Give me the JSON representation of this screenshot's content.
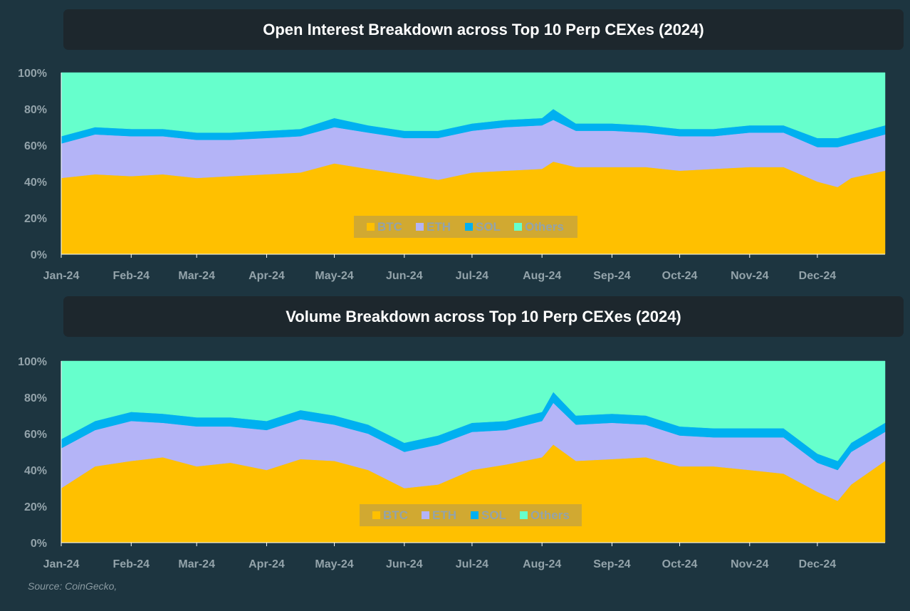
{
  "colors": {
    "BTC": "#ffc000",
    "ETH": "#b4b4f7",
    "SOL": "#00b0f0",
    "Others": "#66ffcc"
  },
  "source": "Source: CoinGecko,",
  "chart_data": [
    {
      "type": "area",
      "stacked": true,
      "title": "Open Interest Breakdown across Top 10 Perp CEXes (2024)",
      "y_ticks": [
        "0%",
        "20%",
        "40%",
        "60%",
        "80%",
        "100%"
      ],
      "ylim": [
        0,
        100
      ],
      "x_ticks": [
        "Jan-24",
        "Feb-24",
        "Mar-24",
        "Apr-24",
        "May-24",
        "Jun-24",
        "Jul-24",
        "Aug-24",
        "Sep-24",
        "Oct-24",
        "Nov-24",
        "Dec-24"
      ],
      "x": [
        "Jan-01",
        "Jan-16",
        "Feb-01",
        "Feb-15",
        "Mar-01",
        "Mar-16",
        "Apr-01",
        "Apr-16",
        "May-01",
        "May-16",
        "Jun-01",
        "Jun-16",
        "Jul-01",
        "Jul-16",
        "Aug-01",
        "Aug-06",
        "Aug-16",
        "Sep-01",
        "Sep-16",
        "Oct-01",
        "Oct-16",
        "Nov-01",
        "Nov-16",
        "Dec-01",
        "Dec-10",
        "Dec-16",
        "Dec-31"
      ],
      "series": [
        {
          "name": "BTC",
          "values": [
            42,
            44,
            43,
            44,
            42,
            43,
            44,
            45,
            50,
            47,
            44,
            41,
            45,
            46,
            47,
            51,
            48,
            48,
            48,
            46,
            47,
            48,
            48,
            40,
            37,
            42,
            46
          ]
        },
        {
          "name": "ETH",
          "values": [
            19,
            22,
            22,
            21,
            21,
            20,
            20,
            20,
            20,
            20,
            20,
            23,
            23,
            24,
            24,
            23,
            20,
            20,
            19,
            19,
            18,
            19,
            19,
            19,
            22,
            19,
            20
          ]
        },
        {
          "name": "SOL",
          "values": [
            4,
            4,
            4,
            4,
            4,
            4,
            4,
            4,
            5,
            4,
            4,
            4,
            4,
            4,
            4,
            6,
            4,
            4,
            4,
            4,
            4,
            4,
            4,
            5,
            5,
            5,
            5
          ]
        },
        {
          "name": "Others",
          "values": [
            35,
            30,
            31,
            31,
            33,
            33,
            32,
            31,
            25,
            29,
            32,
            32,
            28,
            26,
            25,
            20,
            28,
            28,
            29,
            31,
            31,
            29,
            29,
            36,
            36,
            34,
            29
          ]
        }
      ],
      "legend": "bottom-center"
    },
    {
      "type": "area",
      "stacked": true,
      "title": "Volume Breakdown across Top 10 Perp CEXes (2024)",
      "y_ticks": [
        "0%",
        "20%",
        "40%",
        "60%",
        "80%",
        "100%"
      ],
      "ylim": [
        0,
        100
      ],
      "x_ticks": [
        "Jan-24",
        "Feb-24",
        "Mar-24",
        "Apr-24",
        "May-24",
        "Jun-24",
        "Jul-24",
        "Aug-24",
        "Sep-24",
        "Oct-24",
        "Nov-24",
        "Dec-24"
      ],
      "x": [
        "Jan-01",
        "Jan-16",
        "Feb-01",
        "Feb-15",
        "Mar-01",
        "Mar-16",
        "Apr-01",
        "Apr-16",
        "May-01",
        "May-16",
        "Jun-01",
        "Jun-16",
        "Jul-01",
        "Jul-16",
        "Aug-01",
        "Aug-06",
        "Aug-16",
        "Sep-01",
        "Sep-16",
        "Oct-01",
        "Oct-16",
        "Nov-01",
        "Nov-16",
        "Dec-01",
        "Dec-10",
        "Dec-16",
        "Dec-31"
      ],
      "series": [
        {
          "name": "BTC",
          "values": [
            30,
            42,
            45,
            47,
            42,
            44,
            40,
            46,
            45,
            40,
            30,
            32,
            40,
            43,
            47,
            54,
            45,
            46,
            47,
            42,
            42,
            40,
            38,
            28,
            23,
            32,
            45
          ]
        },
        {
          "name": "ETH",
          "values": [
            22,
            20,
            22,
            19,
            22,
            20,
            22,
            22,
            20,
            20,
            20,
            22,
            21,
            19,
            20,
            23,
            20,
            20,
            18,
            17,
            16,
            18,
            20,
            16,
            17,
            18,
            16
          ]
        },
        {
          "name": "SOL",
          "values": [
            5,
            5,
            5,
            5,
            5,
            5,
            5,
            5,
            5,
            5,
            5,
            5,
            5,
            5,
            5,
            6,
            5,
            5,
            5,
            5,
            5,
            5,
            5,
            5,
            5,
            5,
            5
          ]
        },
        {
          "name": "Others",
          "values": [
            43,
            33,
            28,
            29,
            31,
            31,
            33,
            27,
            30,
            35,
            45,
            41,
            34,
            33,
            28,
            17,
            30,
            29,
            30,
            36,
            37,
            37,
            37,
            51,
            55,
            45,
            34
          ]
        }
      ],
      "legend": "bottom-center"
    }
  ]
}
